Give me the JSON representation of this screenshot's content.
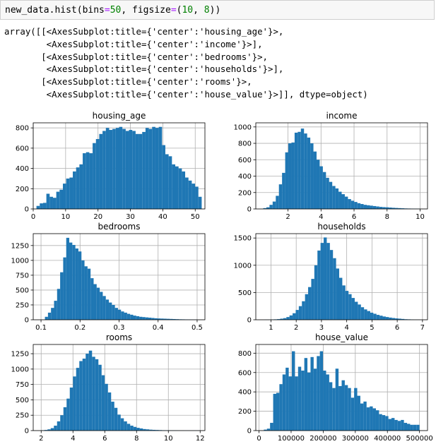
{
  "cell": {
    "code_parts": [
      "new_data.hist(bins",
      "=",
      "50",
      ", figsize",
      "=",
      "(",
      "10",
      ", ",
      "8",
      "))"
    ]
  },
  "output": {
    "lines": [
      "array([[<AxesSubplot:title={'center':'housing_age'}>,",
      "        <AxesSubplot:title={'center':'income'}>],",
      "       [<AxesSubplot:title={'center':'bedrooms'}>,",
      "        <AxesSubplot:title={'center':'households'}>],",
      "       [<AxesSubplot:title={'center':'rooms'}>,",
      "        <AxesSubplot:title={'center':'house_value'}>]], dtype=object)"
    ]
  },
  "colors": {
    "bar": "#1f77b4",
    "grid": "#b0b0b0",
    "axis": "#000000"
  },
  "chart_data": [
    {
      "type": "bar",
      "title": "housing_age",
      "grid": true,
      "xlim": [
        0,
        53
      ],
      "ylim": [
        0,
        850
      ],
      "xticks": [
        0,
        10,
        20,
        30,
        40,
        50
      ],
      "yticks": [
        0,
        200,
        400,
        600,
        800
      ],
      "bin_range": [
        1,
        52
      ],
      "values": [
        30,
        55,
        60,
        150,
        120,
        110,
        170,
        190,
        250,
        300,
        310,
        370,
        410,
        440,
        550,
        560,
        550,
        650,
        690,
        740,
        770,
        800,
        780,
        790,
        800,
        810,
        790,
        770,
        780,
        770,
        740,
        740,
        760,
        800,
        790,
        810,
        800,
        810,
        630,
        540,
        520,
        440,
        420,
        400,
        370,
        310,
        280,
        250,
        220,
        120
      ]
    },
    {
      "type": "bar",
      "title": "income",
      "grid": true,
      "xlim": [
        0.05,
        10.45
      ],
      "ylim": [
        0,
        1050
      ],
      "xticks": [
        2,
        4,
        6,
        8,
        10
      ],
      "yticks": [
        0,
        200,
        400,
        600,
        800,
        1000
      ],
      "bin_range": [
        0.5,
        10.0
      ],
      "values": [
        10,
        20,
        50,
        90,
        160,
        300,
        440,
        690,
        800,
        810,
        930,
        940,
        980,
        920,
        870,
        800,
        700,
        600,
        520,
        450,
        380,
        330,
        280,
        250,
        210,
        180,
        150,
        120,
        100,
        85,
        70,
        60,
        50,
        45,
        40,
        35,
        30,
        25,
        22,
        20,
        17,
        14,
        12,
        10,
        8,
        6,
        5,
        4,
        3,
        2
      ]
    },
    {
      "type": "bar",
      "title": "bedrooms",
      "grid": true,
      "xlim": [
        0.08,
        0.52
      ],
      "ylim": [
        0,
        1450
      ],
      "xticks": [
        0.1,
        0.2,
        0.3,
        0.4,
        0.5
      ],
      "yticks": [
        0,
        250,
        500,
        750,
        1000,
        1250
      ],
      "bin_range": [
        0.11,
        0.5
      ],
      "values": [
        50,
        120,
        200,
        320,
        520,
        800,
        1050,
        1380,
        1300,
        1260,
        1200,
        1150,
        1000,
        900,
        860,
        700,
        600,
        540,
        470,
        400,
        340,
        290,
        250,
        200,
        170,
        140,
        120,
        100,
        85,
        70,
        60,
        50,
        45,
        40,
        35,
        30,
        25,
        22,
        20,
        18,
        16,
        14,
        12,
        10,
        8,
        7,
        6,
        5,
        4,
        3
      ]
    },
    {
      "type": "bar",
      "title": "households",
      "grid": true,
      "xlim": [
        0.4,
        7.2
      ],
      "ylim": [
        0,
        1580
      ],
      "xticks": [
        1,
        2,
        3,
        4,
        5,
        6,
        7
      ],
      "yticks": [
        0,
        500,
        1000,
        1500
      ],
      "bin_range": [
        0.75,
        6.9
      ],
      "values": [
        2,
        3,
        5,
        8,
        12,
        20,
        30,
        50,
        80,
        120,
        180,
        250,
        340,
        470,
        600,
        750,
        1000,
        1270,
        1410,
        1510,
        1410,
        1280,
        1130,
        940,
        770,
        630,
        530,
        470,
        400,
        330,
        280,
        230,
        190,
        160,
        130,
        110,
        90,
        75,
        60,
        50,
        40,
        32,
        25,
        20,
        15,
        10,
        8,
        5,
        3,
        2
      ]
    },
    {
      "type": "bar",
      "title": "rooms",
      "grid": true,
      "xlim": [
        1.5,
        12.3
      ],
      "ylim": [
        0,
        1400
      ],
      "xticks": [
        2,
        4,
        6,
        8,
        10,
        12
      ],
      "yticks": [
        0,
        250,
        500,
        750,
        1000,
        1250
      ],
      "bin_range": [
        2.0,
        12.0
      ],
      "values": [
        5,
        10,
        20,
        40,
        80,
        150,
        250,
        380,
        520,
        700,
        880,
        1020,
        1130,
        1170,
        1250,
        1300,
        1200,
        1160,
        1070,
        900,
        760,
        620,
        470,
        370,
        260,
        200,
        150,
        110,
        80,
        60,
        45,
        35,
        25,
        20,
        15,
        12,
        10,
        8,
        6,
        5,
        4,
        3,
        3,
        2,
        2,
        1,
        1,
        1,
        1,
        1
      ]
    },
    {
      "type": "bar",
      "title": "house_value",
      "grid": true,
      "xlim": [
        -10000,
        525000
      ],
      "ylim": [
        0,
        890
      ],
      "xticks": [
        0,
        100000,
        200000,
        300000,
        400000,
        500000
      ],
      "yticks": [
        0,
        200,
        400,
        600,
        800
      ],
      "bin_range": [
        15000,
        500001
      ],
      "values": [
        10,
        20,
        80,
        380,
        390,
        480,
        580,
        650,
        560,
        820,
        560,
        660,
        620,
        750,
        600,
        760,
        640,
        770,
        820,
        620,
        580,
        500,
        440,
        640,
        460,
        520,
        470,
        440,
        340,
        440,
        360,
        280,
        300,
        240,
        250,
        230,
        210,
        170,
        160,
        150,
        120,
        130,
        110,
        100,
        110,
        80,
        70,
        60,
        60,
        60
      ]
    }
  ]
}
